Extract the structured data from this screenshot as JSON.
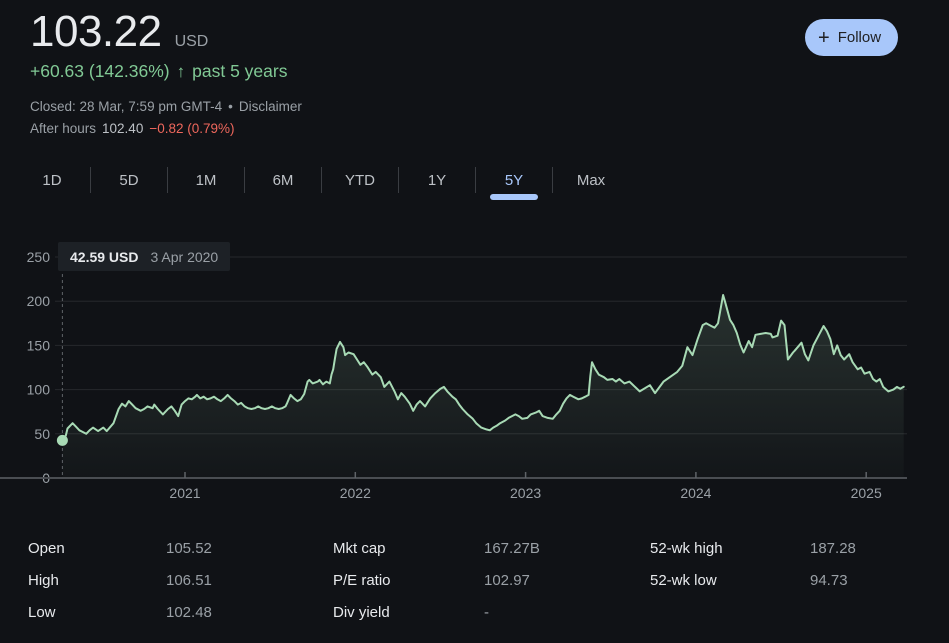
{
  "colors": {
    "background": "#101216",
    "text_primary": "#e8eaed",
    "text_secondary": "#9aa0a6",
    "green_text": "#81c995",
    "line_green": "#a8dab5",
    "red_text": "#ee675c",
    "accent_blue": "#a8c7fa",
    "button_text": "#202124",
    "gridline": "#26282c",
    "axis": "#4a4d52",
    "cursor": "#5f6368"
  },
  "icons": {
    "plus": "+",
    "arrow_up": "↑",
    "bullet": "•"
  },
  "header": {
    "price": "103.22",
    "currency": "USD",
    "change": "+60.63 (142.36%)",
    "period": "past 5 years",
    "closed": "Closed: 28 Mar, 7:59 pm GMT-4",
    "disclaimer": "Disclaimer",
    "after_hours_label": "After hours",
    "after_hours_price": "102.40",
    "after_hours_change": "−0.82 (0.79%)",
    "follow_label": "Follow"
  },
  "tabs": [
    {
      "label": "1D",
      "active": false
    },
    {
      "label": "5D",
      "active": false
    },
    {
      "label": "1M",
      "active": false
    },
    {
      "label": "6M",
      "active": false
    },
    {
      "label": "YTD",
      "active": false
    },
    {
      "label": "1Y",
      "active": false
    },
    {
      "label": "5Y",
      "active": true
    },
    {
      "label": "Max",
      "active": false
    }
  ],
  "tooltip": {
    "value": "42.59 USD",
    "date": "3 Apr 2020"
  },
  "chart_data": {
    "type": "area",
    "unit": "USD",
    "ylim": [
      0,
      250
    ],
    "y_ticks": [
      0,
      50,
      100,
      150,
      200,
      250
    ],
    "x_ticks": [
      {
        "label": "2021",
        "year": 2021
      },
      {
        "label": "2022",
        "year": 2022
      },
      {
        "label": "2023",
        "year": 2023
      },
      {
        "label": "2024",
        "year": 2024
      },
      {
        "label": "2025",
        "year": 2025
      }
    ],
    "grid": true,
    "cursor_x": 2020.28,
    "marker": {
      "x": 2020.28,
      "y": 42.59
    },
    "series": [
      {
        "name": "price",
        "points": [
          [
            2020.28,
            42.59
          ],
          [
            2020.3,
            48
          ],
          [
            2020.31,
            56
          ],
          [
            2020.34,
            62
          ],
          [
            2020.36,
            58
          ],
          [
            2020.38,
            54
          ],
          [
            2020.4,
            52
          ],
          [
            2020.42,
            50
          ],
          [
            2020.44,
            54
          ],
          [
            2020.46,
            57
          ],
          [
            2020.49,
            53
          ],
          [
            2020.52,
            57
          ],
          [
            2020.54,
            53
          ],
          [
            2020.58,
            62
          ],
          [
            2020.61,
            78
          ],
          [
            2020.63,
            84
          ],
          [
            2020.65,
            81
          ],
          [
            2020.67,
            87
          ],
          [
            2020.69,
            83
          ],
          [
            2020.71,
            79
          ],
          [
            2020.74,
            76
          ],
          [
            2020.76,
            78
          ],
          [
            2020.78,
            81
          ],
          [
            2020.81,
            79
          ],
          [
            2020.82,
            83
          ],
          [
            2020.84,
            78
          ],
          [
            2020.87,
            72
          ],
          [
            2020.88,
            74
          ],
          [
            2020.9,
            78
          ],
          [
            2020.92,
            81
          ],
          [
            2020.94,
            76
          ],
          [
            2020.96,
            70
          ],
          [
            2020.98,
            83
          ],
          [
            2021.0,
            87
          ],
          [
            2021.02,
            90
          ],
          [
            2021.04,
            89
          ],
          [
            2021.06,
            92
          ],
          [
            2021.07,
            94
          ],
          [
            2021.09,
            90
          ],
          [
            2021.11,
            92
          ],
          [
            2021.13,
            89
          ],
          [
            2021.15,
            90
          ],
          [
            2021.17,
            92
          ],
          [
            2021.19,
            89
          ],
          [
            2021.21,
            87
          ],
          [
            2021.23,
            90
          ],
          [
            2021.25,
            94
          ],
          [
            2021.27,
            90
          ],
          [
            2021.29,
            87
          ],
          [
            2021.31,
            83
          ],
          [
            2021.33,
            85
          ],
          [
            2021.35,
            81
          ],
          [
            2021.37,
            79
          ],
          [
            2021.39,
            78
          ],
          [
            2021.41,
            79
          ],
          [
            2021.43,
            81
          ],
          [
            2021.45,
            79
          ],
          [
            2021.47,
            78
          ],
          [
            2021.49,
            79
          ],
          [
            2021.51,
            81
          ],
          [
            2021.53,
            79
          ],
          [
            2021.55,
            78
          ],
          [
            2021.57,
            79
          ],
          [
            2021.59,
            81
          ],
          [
            2021.6,
            85
          ],
          [
            2021.62,
            94
          ],
          [
            2021.64,
            90
          ],
          [
            2021.66,
            87
          ],
          [
            2021.68,
            89
          ],
          [
            2021.7,
            95
          ],
          [
            2021.72,
            109
          ],
          [
            2021.73,
            111
          ],
          [
            2021.75,
            107
          ],
          [
            2021.78,
            109
          ],
          [
            2021.79,
            111
          ],
          [
            2021.81,
            106
          ],
          [
            2021.83,
            109
          ],
          [
            2021.85,
            107
          ],
          [
            2021.86,
            117
          ],
          [
            2021.87,
            123
          ],
          [
            2021.88,
            135
          ],
          [
            2021.89,
            146
          ],
          [
            2021.91,
            154
          ],
          [
            2021.93,
            148
          ],
          [
            2021.94,
            139
          ],
          [
            2021.96,
            142
          ],
          [
            2021.99,
            140
          ],
          [
            2022.01,
            134
          ],
          [
            2022.03,
            128
          ],
          [
            2022.05,
            131
          ],
          [
            2022.07,
            126
          ],
          [
            2022.1,
            117
          ],
          [
            2022.12,
            120
          ],
          [
            2022.15,
            114
          ],
          [
            2022.17,
            103
          ],
          [
            2022.2,
            109
          ],
          [
            2022.23,
            98
          ],
          [
            2022.25,
            89
          ],
          [
            2022.27,
            96
          ],
          [
            2022.29,
            92
          ],
          [
            2022.32,
            84
          ],
          [
            2022.34,
            76
          ],
          [
            2022.36,
            83
          ],
          [
            2022.38,
            87
          ],
          [
            2022.41,
            81
          ],
          [
            2022.44,
            90
          ],
          [
            2022.47,
            96
          ],
          [
            2022.5,
            101
          ],
          [
            2022.52,
            103
          ],
          [
            2022.54,
            98
          ],
          [
            2022.57,
            92
          ],
          [
            2022.59,
            89
          ],
          [
            2022.61,
            83
          ],
          [
            2022.63,
            78
          ],
          [
            2022.66,
            72
          ],
          [
            2022.69,
            67
          ],
          [
            2022.71,
            62
          ],
          [
            2022.74,
            57
          ],
          [
            2022.77,
            55
          ],
          [
            2022.79,
            54
          ],
          [
            2022.81,
            57
          ],
          [
            2022.83,
            59
          ],
          [
            2022.85,
            62
          ],
          [
            2022.88,
            65
          ],
          [
            2022.9,
            68
          ],
          [
            2022.92,
            70
          ],
          [
            2022.94,
            72
          ],
          [
            2022.96,
            70
          ],
          [
            2022.98,
            67
          ],
          [
            2023.01,
            68
          ],
          [
            2023.03,
            72
          ],
          [
            2023.06,
            74
          ],
          [
            2023.08,
            76
          ],
          [
            2023.1,
            70
          ],
          [
            2023.13,
            68
          ],
          [
            2023.16,
            67
          ],
          [
            2023.18,
            72
          ],
          [
            2023.2,
            76
          ],
          [
            2023.22,
            84
          ],
          [
            2023.24,
            90
          ],
          [
            2023.26,
            94
          ],
          [
            2023.28,
            92
          ],
          [
            2023.31,
            89
          ],
          [
            2023.33,
            90
          ],
          [
            2023.35,
            92
          ],
          [
            2023.37,
            94
          ],
          [
            2023.38,
            115
          ],
          [
            2023.39,
            131
          ],
          [
            2023.41,
            123
          ],
          [
            2023.43,
            117
          ],
          [
            2023.46,
            114
          ],
          [
            2023.48,
            111
          ],
          [
            2023.51,
            112
          ],
          [
            2023.53,
            109
          ],
          [
            2023.55,
            112
          ],
          [
            2023.58,
            107
          ],
          [
            2023.61,
            109
          ],
          [
            2023.67,
            98
          ],
          [
            2023.73,
            105
          ],
          [
            2023.76,
            96
          ],
          [
            2023.81,
            109
          ],
          [
            2023.89,
            120
          ],
          [
            2023.92,
            127
          ],
          [
            2023.95,
            148
          ],
          [
            2023.98,
            139
          ],
          [
            2024.01,
            157
          ],
          [
            2024.04,
            173
          ],
          [
            2024.06,
            175
          ],
          [
            2024.09,
            172
          ],
          [
            2024.11,
            170
          ],
          [
            2024.13,
            175
          ],
          [
            2024.16,
            207
          ],
          [
            2024.17,
            200
          ],
          [
            2024.2,
            179
          ],
          [
            2024.22,
            173
          ],
          [
            2024.24,
            164
          ],
          [
            2024.26,
            151
          ],
          [
            2024.28,
            142
          ],
          [
            2024.31,
            155
          ],
          [
            2024.33,
            148
          ],
          [
            2024.35,
            162
          ],
          [
            2024.38,
            163
          ],
          [
            2024.41,
            164
          ],
          [
            2024.44,
            163
          ],
          [
            2024.45,
            159
          ],
          [
            2024.48,
            161
          ],
          [
            2024.5,
            178
          ],
          [
            2024.52,
            173
          ],
          [
            2024.54,
            134
          ],
          [
            2024.57,
            142
          ],
          [
            2024.58,
            144
          ],
          [
            2024.62,
            153
          ],
          [
            2024.64,
            140
          ],
          [
            2024.66,
            133
          ],
          [
            2024.69,
            150
          ],
          [
            2024.72,
            161
          ],
          [
            2024.75,
            172
          ],
          [
            2024.77,
            166
          ],
          [
            2024.79,
            157
          ],
          [
            2024.81,
            140
          ],
          [
            2024.83,
            150
          ],
          [
            2024.85,
            139
          ],
          [
            2024.87,
            134
          ],
          [
            2024.9,
            140
          ],
          [
            2024.92,
            131
          ],
          [
            2024.95,
            123
          ],
          [
            2024.97,
            125
          ],
          [
            2024.99,
            118
          ],
          [
            2025.02,
            120
          ],
          [
            2025.04,
            112
          ],
          [
            2025.06,
            109
          ],
          [
            2025.08,
            112
          ],
          [
            2025.1,
            103
          ],
          [
            2025.13,
            98
          ],
          [
            2025.16,
            100
          ],
          [
            2025.18,
            103
          ],
          [
            2025.2,
            101
          ],
          [
            2025.22,
            103.22
          ]
        ]
      }
    ]
  },
  "stats": {
    "columns": [
      {
        "rows": [
          {
            "label": "Open",
            "value": "105.52"
          },
          {
            "label": "High",
            "value": "106.51"
          },
          {
            "label": "Low",
            "value": "102.48"
          }
        ]
      },
      {
        "rows": [
          {
            "label": "Mkt cap",
            "value": "167.27B"
          },
          {
            "label": "P/E ratio",
            "value": "102.97"
          },
          {
            "label": "Div yield",
            "value": "-"
          }
        ]
      },
      {
        "rows": [
          {
            "label": "52-wk high",
            "value": "187.28"
          },
          {
            "label": "52-wk low",
            "value": "94.73"
          }
        ]
      }
    ]
  }
}
